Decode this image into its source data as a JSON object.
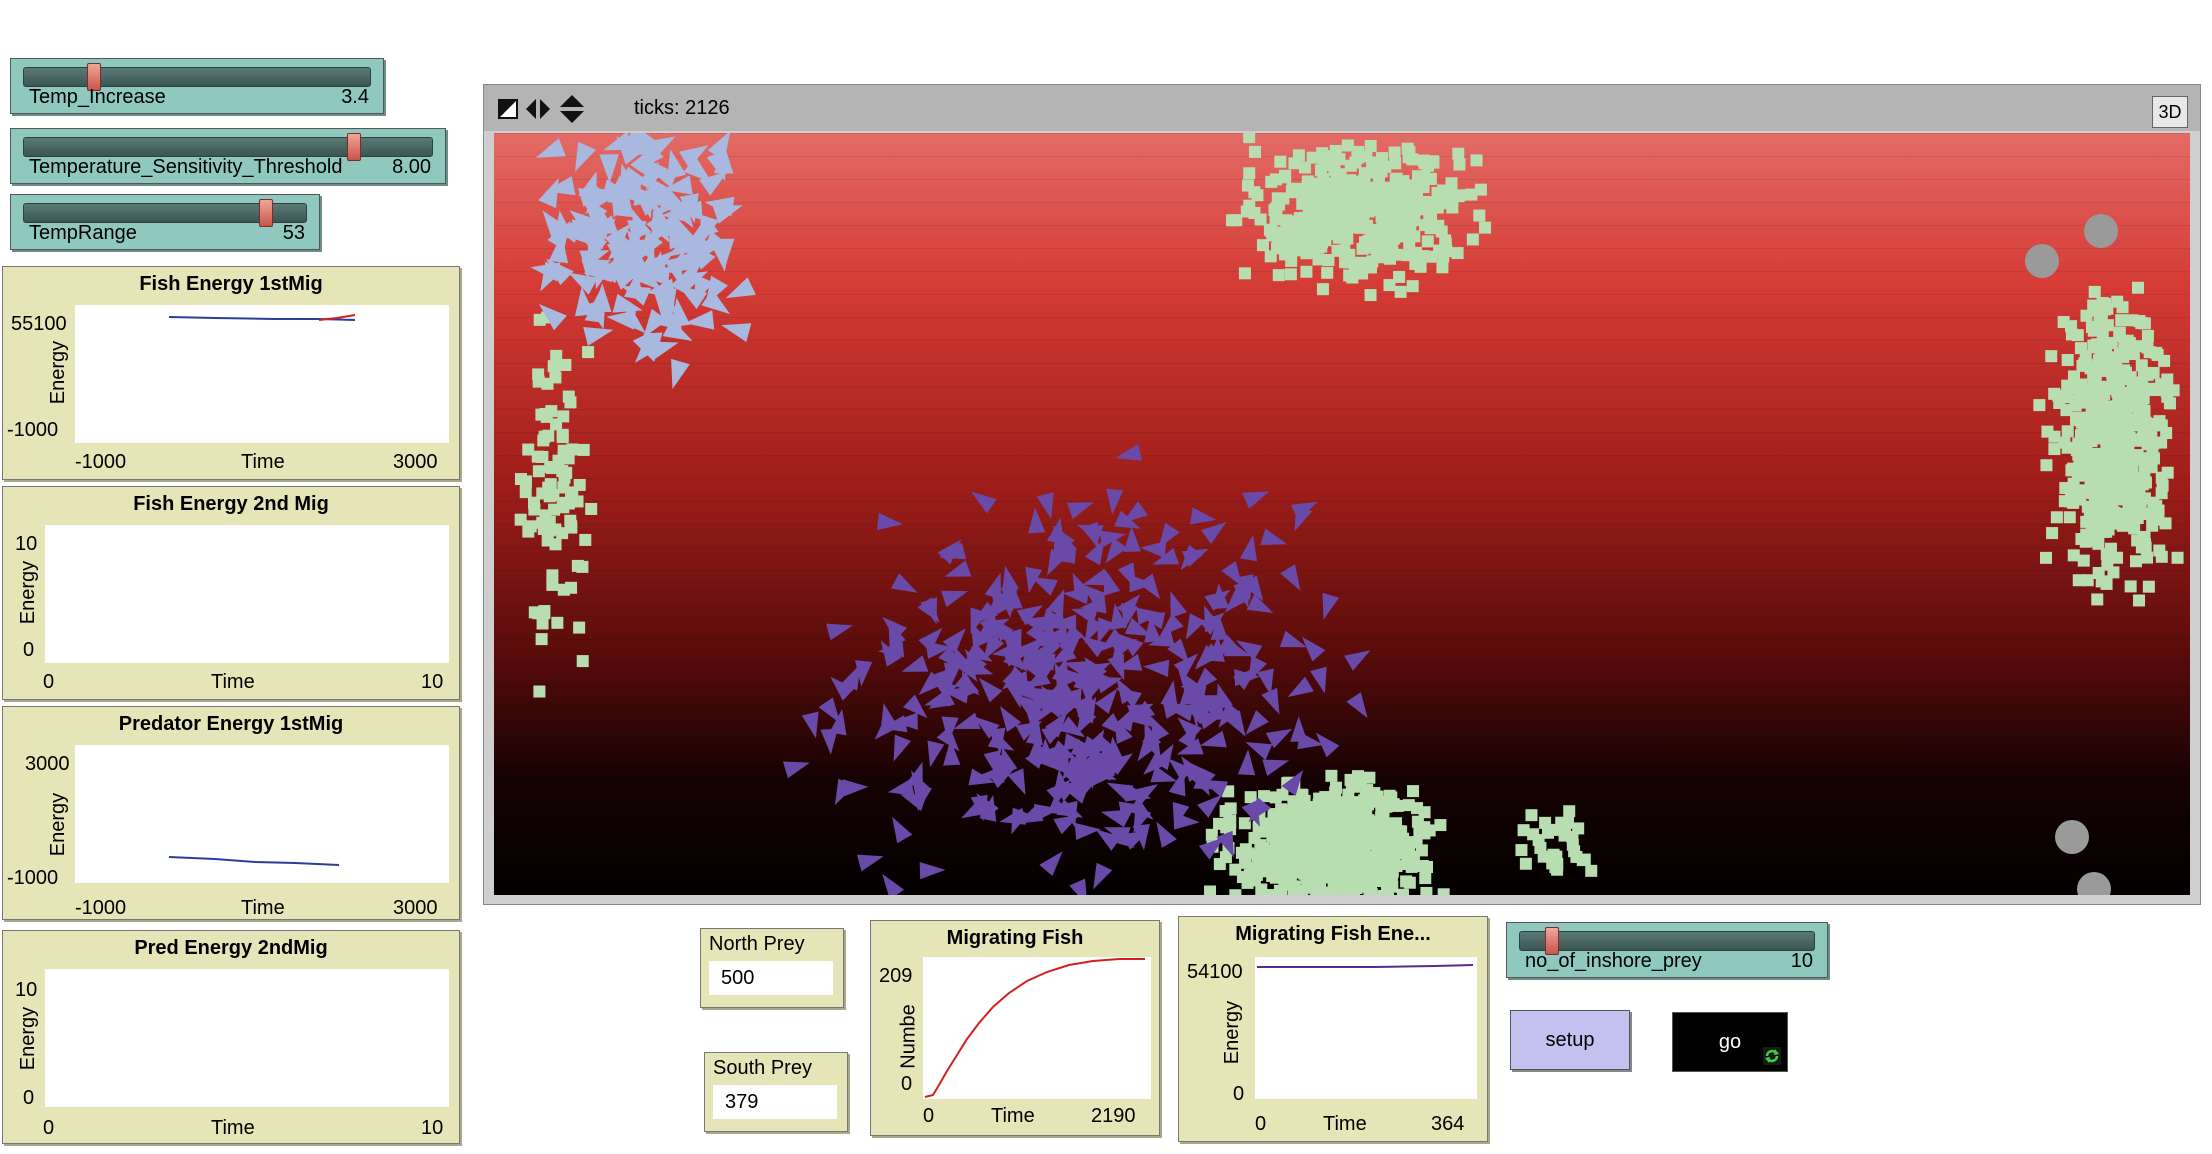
{
  "sliders": [
    {
      "name": "Temp_Increase",
      "value": "3.4",
      "fraction": 0.33
    },
    {
      "name": "Temperature_Sensitivity_Threshold",
      "value": "8.00",
      "fraction": 0.83
    },
    {
      "name": "TempRange",
      "value": "53",
      "fraction": 0.84
    },
    {
      "name": "no_of_inshore_prey",
      "value": "10",
      "fraction": 0.1
    }
  ],
  "plots": [
    {
      "title": "Fish Energy 1stMig",
      "ylabel": "Energy",
      "xlabel": "Time",
      "ymax": "55100",
      "ymin": "-1000",
      "xmin": "-1000",
      "xmax": "3000"
    },
    {
      "title": "Fish Energy 2nd Mig",
      "ylabel": "Energy",
      "xlabel": "Time",
      "ymax": "10",
      "ymin": "0",
      "xmin": "0",
      "xmax": "10"
    },
    {
      "title": "Predator Energy 1stMig",
      "ylabel": "Energy",
      "xlabel": "Time",
      "ymax": "3000",
      "ymin": "-1000",
      "xmin": "-1000",
      "xmax": "3000"
    },
    {
      "title": "Pred Energy 2ndMig",
      "ylabel": "Energy",
      "xlabel": "Time",
      "ymax": "10",
      "ymin": "0",
      "xmin": "0",
      "xmax": "10"
    },
    {
      "title": "Migrating Fish",
      "ylabel": "Numbe",
      "xlabel": "Time",
      "ymax": "209",
      "ymin": "0",
      "xmin": "0",
      "xmax": "2190"
    },
    {
      "title": "Migrating Fish Ene...",
      "ylabel": "Energy",
      "xlabel": "Time",
      "ymax": "54100",
      "ymin": "0",
      "xmin": "0",
      "xmax": "364"
    }
  ],
  "monitors": [
    {
      "label": "North Prey",
      "value": "500"
    },
    {
      "label": "South Prey",
      "value": "379"
    }
  ],
  "world": {
    "ticks": "ticks: 2126",
    "btn_3d": "3D"
  },
  "buttons": {
    "setup": "setup",
    "go": "go"
  },
  "colors": {
    "slider": "#8fc8bf",
    "plot_bg": "#e6e5b8",
    "prey": "#b8ddb0",
    "fish": "#a9b8de",
    "predator": "#6a4aa8",
    "patch_top": "#e36b66",
    "patch_bottom": "#030000"
  }
}
